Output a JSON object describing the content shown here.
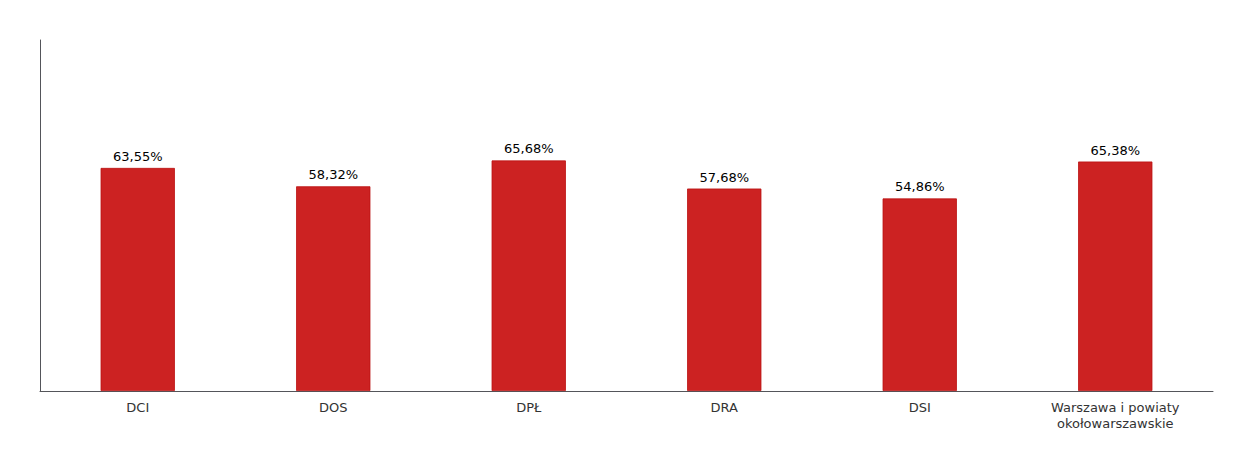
{
  "chart_data": {
    "type": "bar",
    "categories": [
      "DCI",
      "DOS",
      "DPŁ",
      "DRA",
      "DSI",
      "Warszawa i powiaty\nokołowarszawskie"
    ],
    "values": [
      63.55,
      58.32,
      65.68,
      57.68,
      54.86,
      65.38
    ],
    "value_labels": [
      "63,55%",
      "58,32%",
      "65,68%",
      "57,68%",
      "54,86%",
      "65,38%"
    ],
    "color": "#cc2222",
    "ylim": [
      0,
      100
    ],
    "grid": false,
    "data_labels": true,
    "tick_labels": "x"
  }
}
